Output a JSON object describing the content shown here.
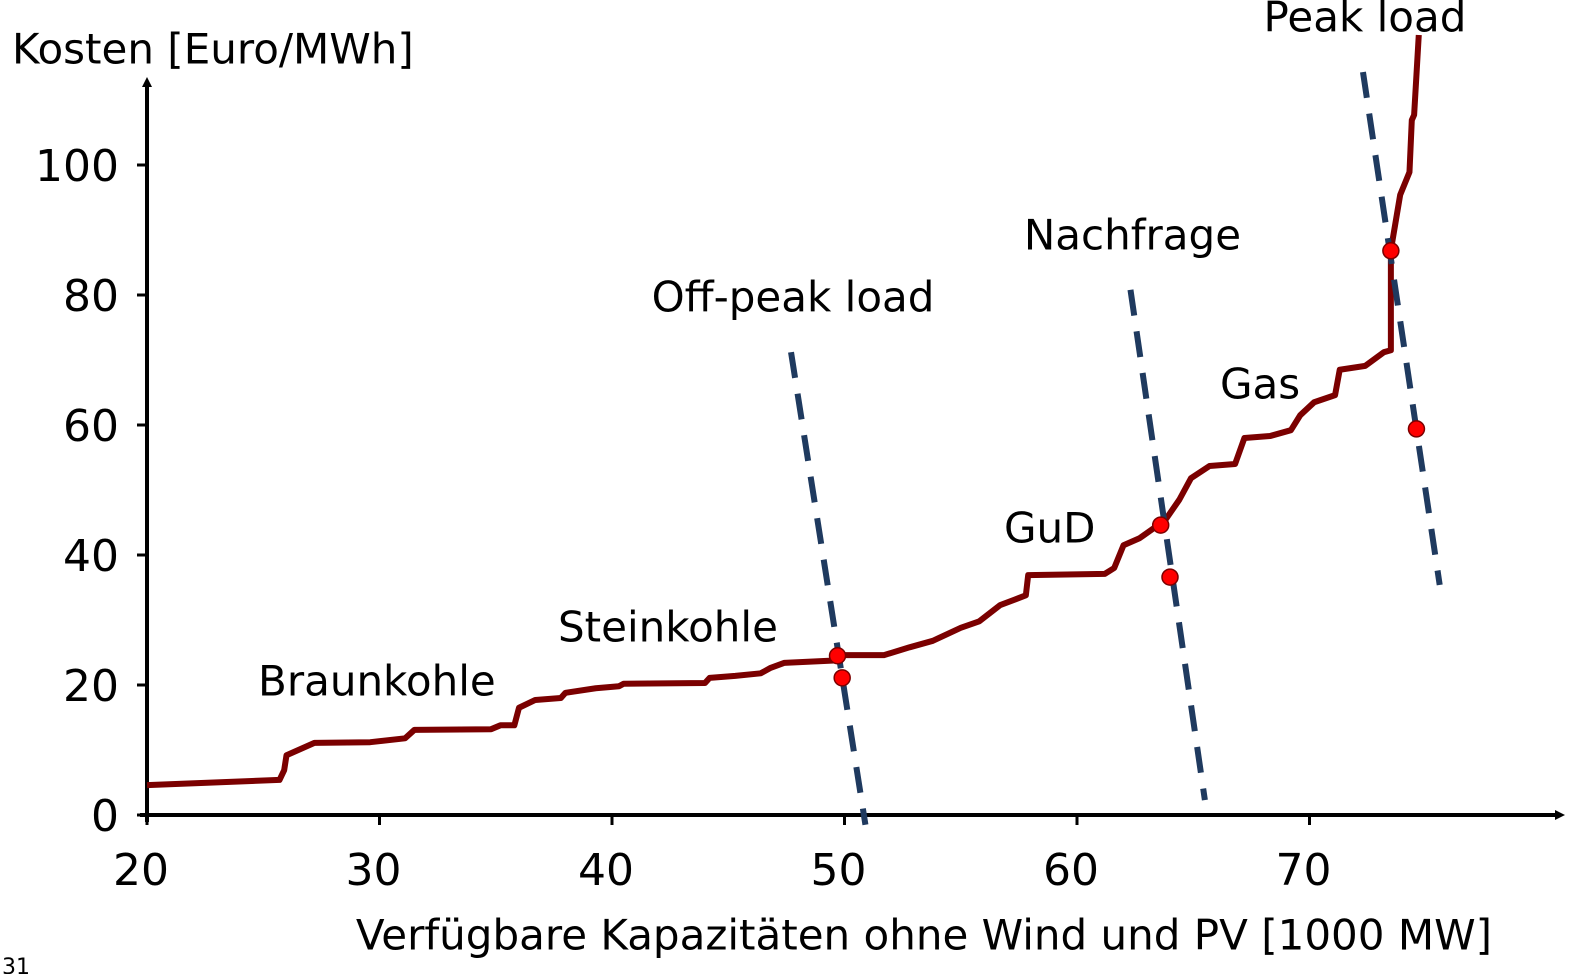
{
  "chart_data": {
    "type": "line",
    "y_label": "Kosten [Euro/MWh]",
    "x_label": "Verfügbare Kapazitäten ohne Wind und PV [1000 MW]",
    "xlim": [
      20,
      81
    ],
    "ylim": [
      0,
      113
    ],
    "xticks": [
      20,
      30,
      40,
      50,
      60,
      70
    ],
    "yticks": [
      0,
      20,
      40,
      60,
      80,
      100
    ],
    "grid": false,
    "series": [
      {
        "color": "#7b0000",
        "x": [
          20,
          25.7,
          25.9,
          26.0,
          27.2,
          29.6,
          31.1,
          31.5,
          34.8,
          35.2,
          35.8,
          36.0,
          36.7,
          37.8,
          38.0,
          39.3,
          40.3,
          40.5,
          44.0,
          44.2,
          45.3,
          46.4,
          46.8,
          47.4,
          49.8,
          50.0,
          51.7,
          52.8,
          53.8,
          55.0,
          55.8,
          56.7,
          57.3,
          57.8,
          57.9,
          61.2,
          61.6,
          62.0,
          62.7,
          63.8,
          64.4,
          64.9,
          65.7,
          66.8,
          67.2,
          68.3,
          69.2,
          69.6,
          70.2,
          71.1,
          71.3,
          72.4,
          73.2,
          73.5,
          73.5,
          73.9,
          74.3,
          74.4,
          74.5,
          74.7
        ],
        "values": [
          4.6,
          5.4,
          6.9,
          9.2,
          11.1,
          11.2,
          11.8,
          13.1,
          13.2,
          13.8,
          13.8,
          16.5,
          17.7,
          18,
          18.8,
          19.5,
          19.8,
          20.2,
          20.3,
          21.1,
          21.4,
          21.8,
          22.6,
          23.4,
          23.8,
          24.6,
          24.6,
          25.8,
          26.8,
          28.8,
          29.8,
          32.3,
          33.1,
          33.8,
          36.9,
          37.1,
          38,
          41.5,
          42.6,
          45.4,
          48.5,
          51.8,
          53.7,
          54,
          58,
          58.3,
          59.2,
          61.5,
          63.5,
          64.6,
          68.5,
          69.1,
          71.2,
          71.5,
          86.9,
          95.4,
          98.9,
          106.9,
          107.7,
          120
        ]
      },
      {
        "name": "Off-peak load",
        "color": "#1f3a5f",
        "dashed": true,
        "x": [
          47.7,
          50.9
        ],
        "values": [
          71.2,
          -1.5
        ]
      },
      {
        "name": "Nachfrage",
        "color": "#1f3a5f",
        "dashed": true,
        "x": [
          62.3,
          65.5
        ],
        "values": [
          80.8,
          2.3
        ]
      },
      {
        "name": "Peak load",
        "color": "#1f3a5f",
        "dashed": true,
        "x": [
          72.3,
          75.6
        ],
        "values": [
          114.3,
          35.4
        ]
      }
    ],
    "points": {
      "color": "#ff0000",
      "x": [
        49.7,
        49.9,
        63.6,
        64.0,
        73.5,
        74.6
      ],
      "values": [
        24.5,
        21.1,
        44.6,
        36.6,
        86.8,
        59.4
      ]
    },
    "annotations": [
      "Braunkohle",
      "Steinkohle",
      "GuD",
      "Gas"
    ]
  },
  "slide_number": "31"
}
